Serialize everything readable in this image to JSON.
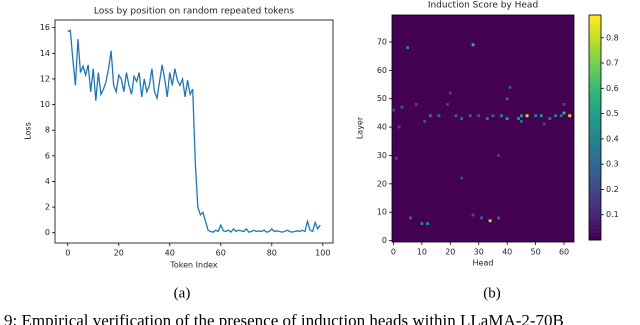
{
  "chart_data": [
    {
      "type": "line",
      "title": "Loss by position on random repeated tokens",
      "x_label": "Token Index",
      "y_label": "Loss",
      "x": [
        0,
        1,
        2,
        3,
        4,
        5,
        6,
        7,
        8,
        9,
        10,
        11,
        12,
        13,
        14,
        15,
        16,
        17,
        18,
        19,
        20,
        21,
        22,
        23,
        24,
        25,
        26,
        27,
        28,
        29,
        30,
        31,
        32,
        33,
        34,
        35,
        36,
        37,
        38,
        39,
        40,
        41,
        42,
        43,
        44,
        45,
        46,
        47,
        48,
        49,
        50,
        51,
        52,
        53,
        54,
        55,
        56,
        57,
        58,
        59,
        60,
        61,
        62,
        63,
        64,
        65,
        66,
        67,
        68,
        69,
        70,
        71,
        72,
        73,
        74,
        75,
        76,
        77,
        78,
        79,
        80,
        81,
        82,
        83,
        84,
        85,
        86,
        87,
        88,
        89,
        90,
        91,
        92,
        93,
        94,
        95,
        96,
        97,
        98,
        99
      ],
      "series": [
        {
          "color": "#1f77b4",
          "values": [
            15.7,
            15.8,
            13.5,
            11.5,
            15.1,
            12.5,
            13.0,
            12.3,
            13.1,
            11.0,
            12.8,
            10.3,
            12.5,
            10.8,
            11.2,
            11.8,
            12.8,
            14.2,
            11.5,
            11.0,
            12.3,
            12.0,
            11.0,
            12.5,
            11.5,
            10.8,
            12.2,
            11.8,
            12.5,
            10.6,
            12.0,
            11.0,
            11.5,
            12.8,
            11.0,
            10.5,
            11.8,
            13.1,
            12.0,
            10.6,
            12.5,
            11.5,
            12.8,
            11.9,
            11.5,
            12.0,
            10.6,
            11.9,
            10.8,
            11.2,
            5.5,
            2.0,
            1.4,
            1.6,
            0.9,
            0.2,
            0.1,
            0.05,
            0.2,
            0.1,
            0.6,
            0.15,
            0.1,
            0.2,
            0.05,
            0.3,
            0.1,
            0.2,
            0.15,
            0.1,
            0.3,
            0.05,
            0.1,
            0.2,
            0.1,
            0.15,
            0.1,
            0.2,
            0.05,
            0.1,
            0.3,
            0.1,
            0.15,
            0.1,
            0.05,
            0.1,
            0.2,
            0.1,
            0.05,
            0.1,
            0.15,
            0.1,
            0.2,
            0.1,
            0.9,
            0.2,
            0.1,
            0.8,
            0.3,
            0.6
          ]
        }
      ],
      "xlim": [
        -5,
        104
      ],
      "ylim": [
        -0.8,
        16.6
      ],
      "xticks": [
        0,
        20,
        40,
        60,
        80,
        100
      ],
      "yticks": [
        0,
        2,
        4,
        6,
        8,
        10,
        12,
        14,
        16
      ]
    },
    {
      "type": "heatmap",
      "title": "Induction Score by Head",
      "x_label": "Head",
      "y_label": "Layer",
      "colormap": "viridis",
      "xlim": [
        0,
        64
      ],
      "ylim": [
        0,
        80
      ],
      "xticks": [
        0,
        10,
        20,
        30,
        40,
        50,
        60
      ],
      "yticks": [
        0,
        10,
        20,
        30,
        40,
        50,
        60,
        70
      ],
      "clim": [
        0,
        0.89
      ],
      "cticks": [
        0.1,
        0.2,
        0.3,
        0.4,
        0.5,
        0.6,
        0.7,
        0.8
      ],
      "cells": [
        {
          "x": 47,
          "y": 44,
          "value": 0.85
        },
        {
          "x": 62,
          "y": 44,
          "value": 0.85
        },
        {
          "x": 60,
          "y": 45,
          "value": 0.6
        },
        {
          "x": 34,
          "y": 7,
          "value": 0.8
        },
        {
          "x": 28,
          "y": 69,
          "value": 0.6
        },
        {
          "x": 5,
          "y": 68,
          "value": 0.4
        },
        {
          "x": 40,
          "y": 43,
          "value": 0.5
        },
        {
          "x": 44,
          "y": 43,
          "value": 0.45
        },
        {
          "x": 45,
          "y": 44,
          "value": 0.5
        },
        {
          "x": 38,
          "y": 44,
          "value": 0.4
        },
        {
          "x": 33,
          "y": 43,
          "value": 0.35
        },
        {
          "x": 22,
          "y": 44,
          "value": 0.3
        },
        {
          "x": 30,
          "y": 44,
          "value": 0.25
        },
        {
          "x": 13,
          "y": 44,
          "value": 0.35
        },
        {
          "x": 16,
          "y": 44,
          "value": 0.3
        },
        {
          "x": 24,
          "y": 43,
          "value": 0.3
        },
        {
          "x": 27,
          "y": 44,
          "value": 0.3
        },
        {
          "x": 35,
          "y": 44,
          "value": 0.3
        },
        {
          "x": 50,
          "y": 44,
          "value": 0.4
        },
        {
          "x": 52,
          "y": 44,
          "value": 0.45
        },
        {
          "x": 55,
          "y": 43,
          "value": 0.35
        },
        {
          "x": 57,
          "y": 44,
          "value": 0.4
        },
        {
          "x": 59,
          "y": 44,
          "value": 0.35
        },
        {
          "x": 10,
          "y": 6,
          "value": 0.4
        },
        {
          "x": 12,
          "y": 6,
          "value": 0.45
        },
        {
          "x": 31,
          "y": 8,
          "value": 0.3
        },
        {
          "x": 37,
          "y": 8,
          "value": 0.3
        },
        {
          "x": 28,
          "y": 9,
          "value": 0.25
        },
        {
          "x": 0,
          "y": 46,
          "value": 0.25
        },
        {
          "x": 3,
          "y": 47,
          "value": 0.25
        },
        {
          "x": 20,
          "y": 52,
          "value": 0.2
        },
        {
          "x": 41,
          "y": 54,
          "value": 0.25
        },
        {
          "x": 6,
          "y": 8,
          "value": 0.3
        },
        {
          "x": 45,
          "y": 42,
          "value": 0.3
        },
        {
          "x": 8,
          "y": 48,
          "value": 0.2
        },
        {
          "x": 19,
          "y": 48,
          "value": 0.2
        },
        {
          "x": 40,
          "y": 50,
          "value": 0.25
        },
        {
          "x": 60,
          "y": 48,
          "value": 0.2
        },
        {
          "x": 1,
          "y": 29,
          "value": 0.2
        },
        {
          "x": 37,
          "y": 30,
          "value": 0.2
        },
        {
          "x": 24,
          "y": 22,
          "value": 0.2
        },
        {
          "x": 2,
          "y": 40,
          "value": 0.2
        },
        {
          "x": 11,
          "y": 42,
          "value": 0.25
        },
        {
          "x": 53,
          "y": 41,
          "value": 0.2
        }
      ]
    }
  ],
  "panel_labels": [
    "(a)",
    "(b)"
  ],
  "caption": "9: Empirical verification of the presence of induction heads within LLaMA-2-70B"
}
